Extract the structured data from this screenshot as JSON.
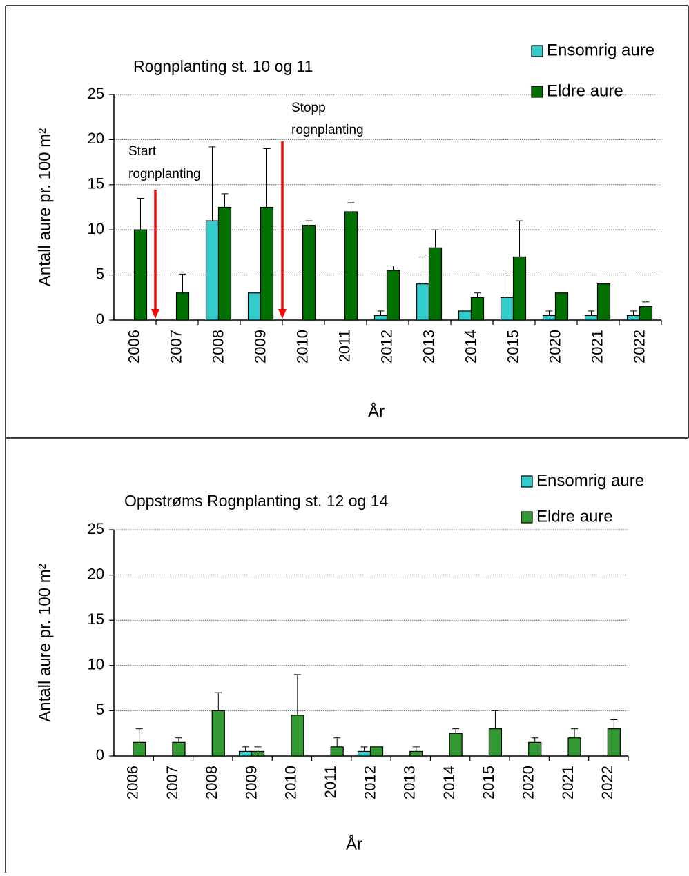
{
  "chart_data": [
    {
      "type": "bar",
      "title": "Rognplanting st. 10 og 11",
      "categories": [
        "2006",
        "2007",
        "2008",
        "2009",
        "2010",
        "2011",
        "2012",
        "2013",
        "2014",
        "2015",
        "2020",
        "2021",
        "2022"
      ],
      "series": [
        {
          "name": "Ensomrig aure",
          "color": "#33cccc",
          "values": [
            0,
            0,
            11,
            3,
            0,
            0,
            0.5,
            4,
            1,
            2.5,
            0.5,
            0.5,
            0.5
          ],
          "errors": [
            null,
            null,
            8.2,
            null,
            null,
            null,
            0.5,
            3,
            null,
            2.5,
            0.5,
            0.5,
            0.5
          ]
        },
        {
          "name": "Eldre aure",
          "color": "#007000",
          "values": [
            10,
            3,
            12.5,
            12.5,
            10.5,
            12,
            5.5,
            8,
            2.5,
            7,
            3,
            4,
            1.5
          ],
          "errors": [
            3.5,
            2.1,
            1.5,
            6.5,
            0.5,
            1,
            0.5,
            2,
            0.5,
            4,
            null,
            null,
            0.5
          ]
        }
      ],
      "xlabel": "År",
      "ylabel": "Antall aure pr. 100 m²",
      "ylim": [
        0,
        25
      ],
      "yticks": [
        0,
        5,
        10,
        15,
        20,
        25
      ],
      "grid": true,
      "annotations": [
        {
          "text": [
            "Start",
            "rognplanting"
          ]
        },
        {
          "text": [
            "Stopp",
            "rognplanting"
          ]
        }
      ]
    },
    {
      "type": "bar",
      "title": "Oppstrøms Rognplanting st. 12 og 14",
      "categories": [
        "2006",
        "2007",
        "2008",
        "2009",
        "2010",
        "2011",
        "2012",
        "2013",
        "2014",
        "2015",
        "2020",
        "2021",
        "2022"
      ],
      "series": [
        {
          "name": "Ensomrig aure",
          "color": "#33cccc",
          "values": [
            0,
            0,
            0,
            0.5,
            0,
            0,
            0.5,
            0,
            0,
            0,
            0,
            0,
            0
          ],
          "errors": [
            null,
            null,
            null,
            0.5,
            null,
            null,
            0.5,
            null,
            null,
            null,
            null,
            null,
            null
          ]
        },
        {
          "name": "Eldre aure",
          "color": "#339933",
          "values": [
            1.5,
            1.5,
            5,
            0.5,
            4.5,
            1,
            1,
            0.5,
            2.5,
            3,
            1.5,
            2,
            3
          ],
          "errors": [
            1.5,
            0.5,
            2,
            0.5,
            4.5,
            1,
            null,
            0.5,
            0.5,
            2,
            0.5,
            1,
            1
          ]
        }
      ],
      "xlabel": "År",
      "ylabel": "Antall aure pr. 100 m²",
      "ylim": [
        0,
        25
      ],
      "yticks": [
        0,
        5,
        10,
        15,
        20,
        25
      ],
      "grid": true
    }
  ]
}
